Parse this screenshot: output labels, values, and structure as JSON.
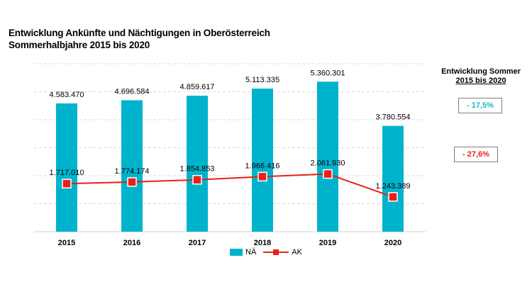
{
  "header": {
    "title_line1": "Entwicklung Ankünfte und Nächtigungen in Oberösterreich",
    "title_line2": "Sommerhalbjahre 2015 bis 2020"
  },
  "side_panel": {
    "title_line1": "Entwicklung Sommer",
    "title_line2": "2015 bis 2020",
    "badge_na": "-  17,5%",
    "badge_ak": "-  27,6%",
    "badge_na_color": "#1fb7c7",
    "badge_ak_color": "#e8201a"
  },
  "chart_data": {
    "type": "bar",
    "categories": [
      "2015",
      "2016",
      "2017",
      "2018",
      "2019",
      "2020"
    ],
    "series": [
      {
        "name": "NÄ",
        "type": "bar",
        "color": "#00b3cc",
        "values": [
          4583470,
          4696584,
          4859617,
          5113335,
          5360301,
          3780554
        ],
        "labels": [
          "4.583.470",
          "4.696.584",
          "4.859.617",
          "5.113.335",
          "5.360.301",
          "3.780.554"
        ]
      },
      {
        "name": "AK",
        "type": "line",
        "color": "#e8201a",
        "values": [
          1717010,
          1774174,
          1854853,
          1966416,
          2061930,
          1243389
        ],
        "labels": [
          "1.717.010",
          "1.774.174",
          "1.854.853",
          "1.966.416",
          "2.061.930",
          "1.243.389"
        ]
      }
    ],
    "ylim": [
      0,
      6000000
    ],
    "grid": true,
    "legend": "bottom"
  }
}
